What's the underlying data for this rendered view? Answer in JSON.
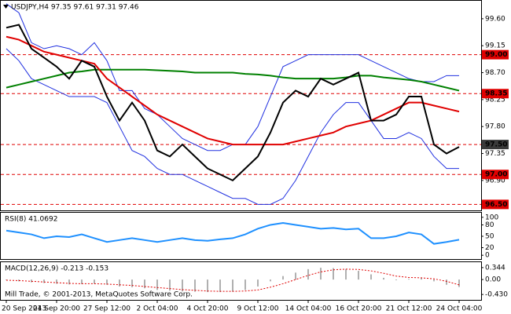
{
  "chart_data": [
    {
      "type": "line",
      "title": "USDJPY,H4  97.35 97.61 97.31 97.46",
      "categories": [
        "20 Sep 2013",
        null,
        null,
        null,
        "24 Sep 20:00",
        null,
        null,
        null,
        "27 Sep 12:00",
        null,
        null,
        null,
        "2 Oct 04:00",
        null,
        null,
        null,
        "4 Oct 20:00",
        null,
        null,
        null,
        "9 Oct 12:00",
        null,
        null,
        null,
        "14 Oct 04:00",
        null,
        null,
        null,
        "16 Oct 20:00",
        null,
        null,
        null,
        "21 Oct 12:00",
        null,
        null,
        null,
        "24 Oct 04:00"
      ],
      "ylim": [
        96.4,
        99.9
      ],
      "yticks": [
        {
          "value": 99.6,
          "label": "99.60"
        },
        {
          "value": 99.15,
          "label": "99.15"
        },
        {
          "value": 98.7,
          "label": "98.70"
        },
        {
          "value": 98.25,
          "label": "98.25"
        },
        {
          "value": 97.8,
          "label": "97.80"
        },
        {
          "value": 97.35,
          "label": "97.35"
        },
        {
          "value": 96.9,
          "label": "96.90"
        }
      ],
      "level_line_color": "#e00000",
      "levels": [
        {
          "value": 99.0,
          "label": "99.00",
          "color": "#e00000"
        },
        {
          "value": 98.35,
          "label": "98.35",
          "color": "#e00000"
        },
        {
          "value": 97.5,
          "label": "97.50",
          "color": "#3a3a3a"
        },
        {
          "value": 97.0,
          "label": "97.00",
          "color": "#e00000"
        },
        {
          "value": 96.5,
          "label": "96.50",
          "color": "#e00000"
        }
      ],
      "series": [
        {
          "color": "#2030e0",
          "values": [
            99.85,
            99.7,
            99.2,
            99.1,
            99.15,
            99.1,
            99.0,
            99.2,
            98.9,
            98.4,
            98.4,
            98.1,
            98.0,
            97.8,
            97.6,
            97.5,
            97.4,
            97.4,
            97.5,
            97.5,
            97.8,
            98.3,
            98.8,
            98.9,
            99.0,
            99.0,
            99.0,
            99.0,
            99.0,
            98.9,
            98.8,
            98.7,
            98.6,
            98.55,
            98.55,
            98.65,
            98.65
          ]
        },
        {
          "color": "#2030e0",
          "values": [
            99.1,
            98.9,
            98.6,
            98.5,
            98.4,
            98.3,
            98.3,
            98.3,
            98.2,
            97.8,
            97.4,
            97.3,
            97.1,
            97.0,
            97.0,
            96.9,
            96.8,
            96.7,
            96.6,
            96.6,
            96.5,
            96.5,
            96.6,
            96.9,
            97.3,
            97.7,
            98.0,
            98.2,
            98.2,
            97.9,
            97.6,
            97.6,
            97.7,
            97.6,
            97.3,
            97.1,
            97.1
          ]
        },
        {
          "color": "#008000",
          "values": [
            98.45,
            98.5,
            98.55,
            98.6,
            98.65,
            98.7,
            98.72,
            98.75,
            98.75,
            98.75,
            98.75,
            98.75,
            98.74,
            98.73,
            98.72,
            98.7,
            98.7,
            98.7,
            98.7,
            98.68,
            98.67,
            98.65,
            98.62,
            98.6,
            98.6,
            98.6,
            98.6,
            98.62,
            98.65,
            98.65,
            98.62,
            98.6,
            98.58,
            98.55,
            98.5,
            98.45,
            98.4
          ]
        },
        {
          "color": "#e00000",
          "values": [
            99.3,
            99.25,
            99.15,
            99.05,
            99.0,
            98.95,
            98.9,
            98.85,
            98.6,
            98.45,
            98.3,
            98.15,
            98.0,
            97.9,
            97.8,
            97.7,
            97.6,
            97.55,
            97.5,
            97.5,
            97.5,
            97.5,
            97.5,
            97.55,
            97.6,
            97.65,
            97.7,
            97.8,
            97.85,
            97.9,
            98.0,
            98.1,
            98.2,
            98.2,
            98.15,
            98.1,
            98.05
          ]
        },
        {
          "color": "#000000",
          "values": [
            99.45,
            99.5,
            99.1,
            98.95,
            98.8,
            98.6,
            98.9,
            98.8,
            98.3,
            97.9,
            98.2,
            97.9,
            97.4,
            97.3,
            97.5,
            97.3,
            97.1,
            97.0,
            96.9,
            97.1,
            97.3,
            97.7,
            98.2,
            98.4,
            98.3,
            98.6,
            98.5,
            98.6,
            98.7,
            97.9,
            97.9,
            98.0,
            98.3,
            98.3,
            97.5,
            97.35,
            97.46
          ]
        }
      ]
    },
    {
      "type": "line",
      "title": "RSI(8) 41.0692",
      "ylim": [
        -10,
        112
      ],
      "yticks": [
        100,
        80,
        50,
        20,
        0
      ],
      "series": [
        {
          "color": "#1e90ff",
          "values": [
            65,
            60,
            55,
            45,
            50,
            48,
            55,
            45,
            35,
            40,
            45,
            40,
            35,
            40,
            45,
            40,
            38,
            42,
            45,
            55,
            70,
            80,
            85,
            80,
            75,
            70,
            72,
            68,
            70,
            45,
            45,
            50,
            60,
            55,
            30,
            35,
            41
          ]
        }
      ]
    },
    {
      "type": "macd",
      "title": "MACD(12,26,9) -0.213 -0.153",
      "annotation": "Mill Trade, © 2001-2013, MetaQuotes Software Corp.",
      "ylim": [
        -0.585,
        0.5
      ],
      "yticks": [
        0.344,
        {
          "value": 0,
          "label": "0.00"
        },
        {
          "value": -0.43,
          "label": "-0.430"
        }
      ],
      "histogram": {
        "color": "#b0b0b0",
        "values": [
          -0.02,
          -0.05,
          -0.08,
          -0.1,
          -0.12,
          -0.14,
          -0.13,
          -0.12,
          -0.15,
          -0.2,
          -0.22,
          -0.25,
          -0.3,
          -0.32,
          -0.34,
          -0.35,
          -0.36,
          -0.36,
          -0.35,
          -0.3,
          -0.2,
          -0.05,
          0.1,
          0.2,
          0.3,
          0.34,
          0.33,
          0.3,
          0.25,
          0.15,
          0.05,
          -0.02,
          0.02,
          0.05,
          -0.05,
          -0.15,
          -0.213
        ]
      },
      "signal": {
        "color": "#e00000",
        "values": [
          -0.02,
          -0.03,
          -0.05,
          -0.07,
          -0.09,
          -0.11,
          -0.12,
          -0.12,
          -0.13,
          -0.15,
          -0.17,
          -0.2,
          -0.23,
          -0.26,
          -0.29,
          -0.31,
          -0.33,
          -0.34,
          -0.34,
          -0.33,
          -0.3,
          -0.22,
          -0.12,
          0.0,
          0.12,
          0.22,
          0.28,
          0.3,
          0.29,
          0.25,
          0.18,
          0.1,
          0.06,
          0.05,
          0.02,
          -0.05,
          -0.153
        ]
      }
    }
  ]
}
